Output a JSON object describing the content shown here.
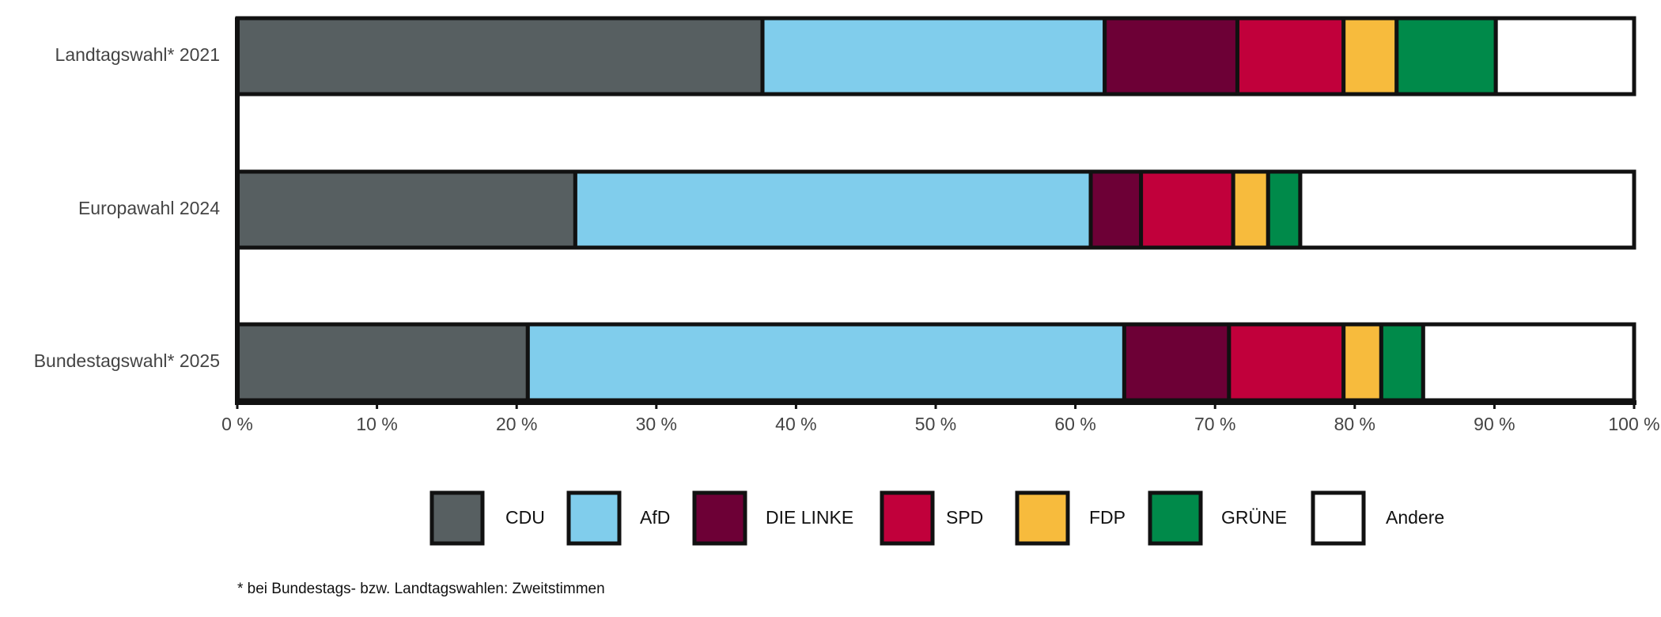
{
  "chart_data": {
    "type": "stacked-bar-horizontal",
    "categories": [
      "Landtagswahl* 2021",
      "Europawahl 2024",
      "Bundestagswahl* 2025"
    ],
    "series": [
      {
        "name": "CDU",
        "color": "#575f61",
        "values": [
          37.6,
          24.2,
          20.8
        ]
      },
      {
        "name": "AfD",
        "color": "#80cdec",
        "values": [
          24.5,
          36.9,
          42.7
        ]
      },
      {
        "name": "DIE LINKE",
        "color": "#6d0036",
        "values": [
          9.5,
          3.6,
          7.5
        ]
      },
      {
        "name": "SPD",
        "color": "#c1003b",
        "values": [
          7.6,
          6.6,
          8.2
        ]
      },
      {
        "name": "FDP",
        "color": "#f7bb3d",
        "values": [
          3.8,
          2.5,
          2.7
        ]
      },
      {
        "name": "GRÜNE",
        "color": "#008a4a",
        "values": [
          7.1,
          2.3,
          3.0
        ]
      },
      {
        "name": "Andere",
        "color": "#ffffff",
        "values": [
          9.9,
          23.9,
          15.1
        ]
      }
    ],
    "xlim": [
      0,
      100
    ],
    "xticks": [
      {
        "value": 0,
        "label": "0 %"
      },
      {
        "value": 10,
        "label": "10 %"
      },
      {
        "value": 20,
        "label": "20 %"
      },
      {
        "value": 30,
        "label": "30 %"
      },
      {
        "value": 40,
        "label": "40 %"
      },
      {
        "value": 50,
        "label": "50 %"
      },
      {
        "value": 60,
        "label": "60 %"
      },
      {
        "value": 70,
        "label": "70 %"
      },
      {
        "value": 80,
        "label": "80 %"
      },
      {
        "value": 90,
        "label": "90 %"
      },
      {
        "value": 100,
        "label": "100 %"
      }
    ],
    "legend": "bottom",
    "footnote": "* bei Bundestags- bzw. Landtagswahlen: Zweitstimmen"
  }
}
